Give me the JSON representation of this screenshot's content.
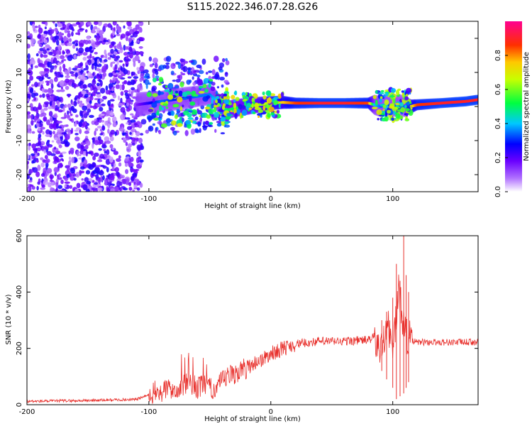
{
  "title": "S115.2022.346.07.28.G26",
  "chart_data": [
    {
      "type": "heatmap",
      "name": "spectrogram",
      "xlabel": "Height of straight line (km)",
      "ylabel": "Frequency (Hz)",
      "xlim": [
        -200,
        170
      ],
      "ylim": [
        -25,
        25
      ],
      "xticks": [
        -200,
        -100,
        0,
        100
      ],
      "yticks": [
        -20,
        -10,
        0,
        10,
        20
      ],
      "grid": false,
      "colorbar": {
        "label": "Normalized spectral amplitude",
        "range": [
          0,
          1
        ],
        "ticks": [
          0.0,
          0.2,
          0.4,
          0.6,
          0.8
        ],
        "colormap": [
          "#ffffff",
          "#7a00ff",
          "#0000ff",
          "#00d0ff",
          "#00ff00",
          "#ffff00",
          "#ff8000",
          "#ff0000",
          "#ff0080"
        ]
      },
      "ridge": {
        "x": [
          -110,
          -100,
          -90,
          -80,
          -70,
          -60,
          -50,
          -45,
          -40,
          -35,
          -30,
          -20,
          -10,
          0,
          10,
          20,
          40,
          60,
          80,
          85,
          90,
          95,
          100,
          105,
          110,
          115,
          120,
          140,
          160,
          170
        ],
        "freq": [
          0.5,
          1.0,
          1.5,
          2.0,
          2.5,
          3.0,
          3.5,
          2.0,
          -0.5,
          -1.0,
          -0.5,
          0.0,
          0.5,
          1.0,
          1.2,
          1.0,
          1.0,
          1.0,
          1.0,
          0.5,
          0.0,
          0.5,
          0.0,
          0.5,
          0.0,
          0.0,
          0.5,
          1.0,
          1.5,
          2.0
        ],
        "amplitude": [
          0.15,
          0.25,
          0.35,
          0.3,
          0.3,
          0.35,
          0.35,
          0.4,
          0.45,
          0.5,
          0.5,
          0.55,
          0.6,
          0.7,
          0.75,
          0.85,
          0.9,
          0.9,
          0.85,
          0.4,
          0.35,
          0.3,
          0.35,
          0.3,
          0.35,
          0.7,
          0.85,
          0.9,
          0.9,
          0.9
        ]
      },
      "noise_region": {
        "x_range": [
          -200,
          -105
        ],
        "freq_range": [
          -25,
          25
        ]
      }
    },
    {
      "type": "line",
      "name": "snr",
      "xlabel": "Height of straight line (km)",
      "ylabel": "SNR (10 * v/v)",
      "xlim": [
        -200,
        170
      ],
      "ylim": [
        0,
        600
      ],
      "xticks": [
        -200,
        -100,
        0,
        100
      ],
      "yticks": [
        0,
        200,
        400,
        600
      ],
      "grid": false,
      "color": "#e8302c",
      "x": [
        -200,
        -190,
        -180,
        -170,
        -160,
        -150,
        -140,
        -130,
        -120,
        -110,
        -100,
        -95,
        -90,
        -85,
        -80,
        -75,
        -70,
        -65,
        -60,
        -55,
        -50,
        -45,
        -40,
        -35,
        -30,
        -25,
        -20,
        -15,
        -10,
        -5,
        0,
        10,
        20,
        30,
        40,
        50,
        60,
        70,
        80,
        85,
        90,
        95,
        100,
        105,
        110,
        115,
        120,
        130,
        140,
        150,
        160,
        170
      ],
      "y": [
        12,
        12,
        13,
        14,
        14,
        15,
        16,
        17,
        18,
        19,
        35,
        45,
        40,
        60,
        55,
        65,
        70,
        75,
        60,
        70,
        55,
        60,
        80,
        100,
        110,
        120,
        130,
        145,
        155,
        165,
        180,
        200,
        215,
        220,
        225,
        225,
        225,
        228,
        230,
        240,
        180,
        300,
        200,
        400,
        260,
        225,
        222,
        222,
        222,
        222,
        222,
        222
      ],
      "spikes": [
        {
          "x": 103,
          "y_max": 500,
          "y_min": 20
        },
        {
          "x": 106,
          "y_max": 440,
          "y_min": 30
        },
        {
          "x": 109,
          "y_max": 610,
          "y_min": 40
        },
        {
          "x": 111,
          "y_max": 460,
          "y_min": 60
        },
        {
          "x": 113,
          "y_max": 400,
          "y_min": 80
        },
        {
          "x": 100,
          "y_max": 380,
          "y_min": 60
        },
        {
          "x": 95,
          "y_max": 330,
          "y_min": 90
        },
        {
          "x": 91,
          "y_max": 300,
          "y_min": 120
        }
      ]
    }
  ]
}
